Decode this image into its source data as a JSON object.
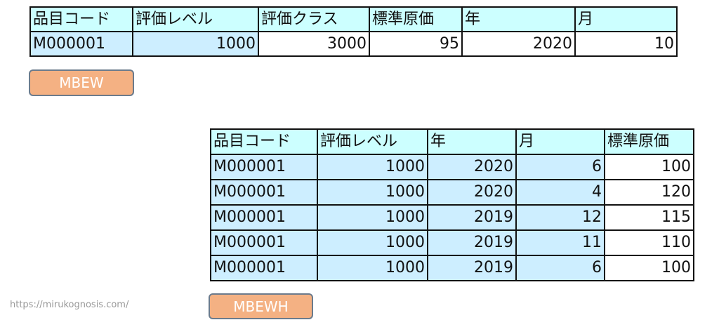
{
  "mbew": {
    "headers": [
      "品目コード",
      "評価レベル",
      "評価クラス",
      "標準原価",
      "年",
      "月"
    ],
    "row": [
      "M000001",
      "1000",
      "3000",
      "95",
      "2020",
      "10"
    ],
    "label": "MBEW"
  },
  "mbewh": {
    "headers": [
      "品目コード",
      "評価レベル",
      "年",
      "月",
      "標準原価"
    ],
    "rows": [
      [
        "M000001",
        "1000",
        "2020",
        "6",
        "100"
      ],
      [
        "M000001",
        "1000",
        "2020",
        "4",
        "120"
      ],
      [
        "M000001",
        "1000",
        "2019",
        "12",
        "115"
      ],
      [
        "M000001",
        "1000",
        "2019",
        "11",
        "110"
      ],
      [
        "M000001",
        "1000",
        "2019",
        "6",
        "100"
      ]
    ],
    "label": "MBEWH"
  },
  "watermark": "https://mirukognosis.com/",
  "colors": {
    "header": "#ccffff",
    "key_cell": "#cdeeff",
    "button": "#f4b183"
  }
}
